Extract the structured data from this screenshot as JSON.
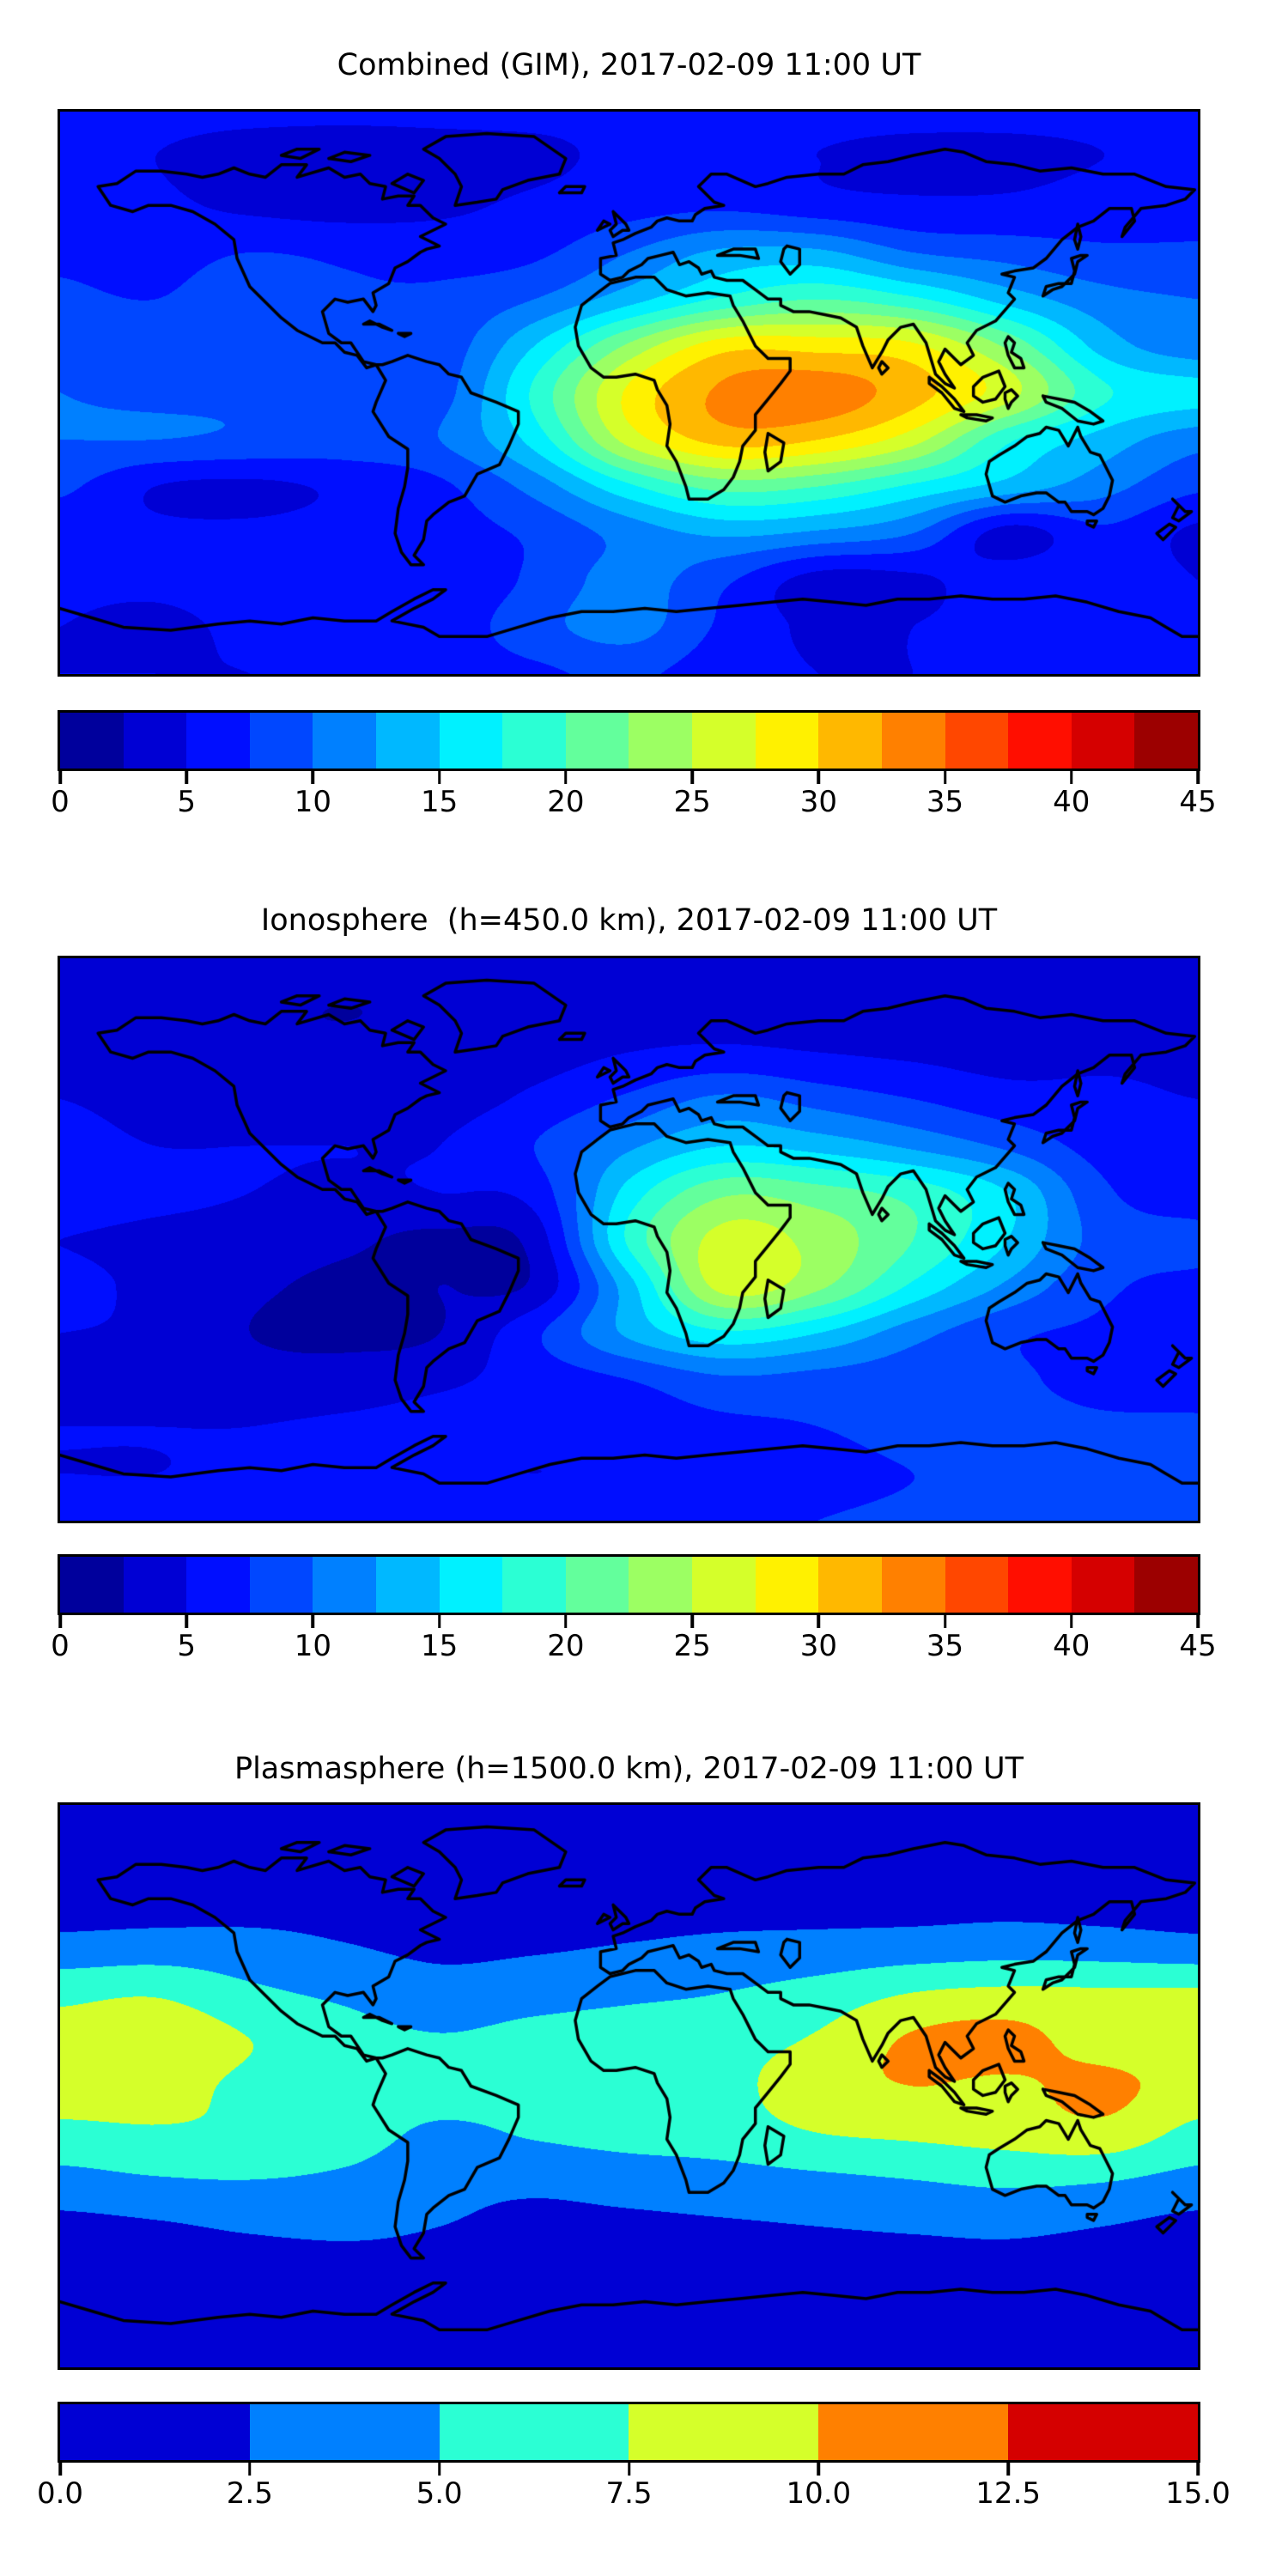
{
  "figure": {
    "background_color": "#ffffff",
    "map_border_color": "#000000",
    "coastline_color": "#000000"
  },
  "chart_data": [
    {
      "type": "heatmap",
      "title": "Combined (GIM), 2017-02-09 11:00 UT",
      "colormap": "jet",
      "projection": "equirectangular",
      "vmin": 0,
      "vmax": 45,
      "level_step": 2.5,
      "n_bands": 18,
      "colorbar_tick_labels": [
        "0",
        "5",
        "10",
        "15",
        "20",
        "25",
        "30",
        "35",
        "40",
        "45"
      ],
      "colorbar_tick_values": [
        0,
        5,
        10,
        15,
        20,
        25,
        30,
        35,
        40,
        45
      ],
      "lon_min": -180,
      "lon_max": 180,
      "lon_step": 30,
      "lat_max": 90,
      "lat_min": -90,
      "lat_step": 15,
      "grid_lats": [
        90,
        75,
        60,
        45,
        30,
        15,
        0,
        -15,
        -30,
        -45,
        -60,
        -75,
        -90
      ],
      "grid_lons": [
        -180,
        -150,
        -120,
        -90,
        -60,
        -30,
        0,
        30,
        60,
        90,
        120,
        150,
        180
      ],
      "values": [
        [
          5.5,
          5.5,
          5.5,
          5.5,
          5.5,
          5.5,
          5.5,
          5.5,
          5.5,
          5.5,
          5.5,
          5.5,
          5.5
        ],
        [
          5.5,
          5.0,
          4.0,
          3.5,
          4.0,
          4.5,
          5.5,
          5.5,
          5.0,
          4.5,
          4.5,
          5.0,
          5.5
        ],
        [
          6.0,
          5.5,
          4.5,
          4.0,
          4.5,
          5.5,
          6.5,
          7.0,
          6.0,
          5.5,
          5.5,
          6.0,
          6.0
        ],
        [
          7.0,
          6.5,
          7.5,
          7.0,
          6.5,
          7.0,
          10.0,
          13.0,
          13.0,
          10.0,
          9.0,
          8.0,
          8.0
        ],
        [
          8.0,
          7.5,
          9.0,
          8.0,
          8.0,
          10.0,
          14.0,
          18.0,
          20.0,
          18.0,
          14.0,
          11.0,
          10.0
        ],
        [
          9.5,
          9.0,
          9.5,
          9.0,
          8.5,
          15.0,
          23.0,
          29.0,
          29.0,
          28.0,
          22.0,
          14.0,
          11.0
        ],
        [
          10.0,
          9.5,
          9.5,
          9.0,
          9.0,
          18.0,
          28.0,
          33.0,
          34.0,
          31.0,
          26.0,
          18.0,
          16.0
        ],
        [
          10.0,
          10.0,
          9.5,
          9.0,
          10.0,
          16.0,
          26.0,
          31.0,
          30.0,
          26.0,
          18.0,
          14.0,
          11.0
        ],
        [
          8.0,
          5.0,
          4.5,
          5.5,
          7.0,
          11.0,
          17.0,
          21.0,
          20.0,
          17.0,
          14.0,
          11.0,
          8.0
        ],
        [
          6.0,
          5.5,
          5.5,
          6.0,
          6.5,
          8.0,
          11.0,
          13.0,
          12.0,
          10.0,
          4.0,
          7.0,
          4.5
        ],
        [
          5.5,
          5.5,
          6.0,
          6.0,
          5.5,
          8.0,
          11.0,
          8.0,
          4.0,
          4.5,
          6.5,
          7.0,
          5.0
        ],
        [
          5.0,
          4.5,
          5.5,
          6.0,
          6.0,
          9.0,
          11.0,
          7.0,
          4.5,
          5.0,
          6.0,
          6.5,
          5.5
        ],
        [
          5.0,
          5.0,
          5.0,
          5.5,
          6.0,
          7.0,
          8.0,
          6.0,
          5.0,
          5.0,
          5.5,
          6.0,
          5.5
        ]
      ]
    },
    {
      "type": "heatmap",
      "title": "Ionosphere  (h=450.0 km), 2017-02-09 11:00 UT",
      "colormap": "jet",
      "projection": "equirectangular",
      "vmin": 0,
      "vmax": 45,
      "level_step": 2.5,
      "n_bands": 18,
      "colorbar_tick_labels": [
        "0",
        "5",
        "10",
        "15",
        "20",
        "25",
        "30",
        "35",
        "40",
        "45"
      ],
      "colorbar_tick_values": [
        0,
        5,
        10,
        15,
        20,
        25,
        30,
        35,
        40,
        45
      ],
      "lon_min": -180,
      "lon_max": 180,
      "lon_step": 30,
      "lat_max": 90,
      "lat_min": -90,
      "lat_step": 15,
      "grid_lats": [
        90,
        75,
        60,
        45,
        30,
        15,
        0,
        -15,
        -30,
        -45,
        -60,
        -75,
        -90
      ],
      "grid_lons": [
        -180,
        -150,
        -120,
        -90,
        -60,
        -30,
        0,
        30,
        60,
        90,
        120,
        150,
        180
      ],
      "values": [
        [
          4.0,
          4.0,
          4.0,
          4.0,
          4.0,
          4.0,
          4.0,
          4.0,
          4.0,
          4.0,
          4.0,
          4.0,
          4.0
        ],
        [
          4.0,
          3.5,
          3.0,
          2.5,
          3.0,
          3.5,
          4.0,
          4.0,
          3.5,
          3.0,
          3.0,
          3.5,
          4.0
        ],
        [
          4.5,
          4.0,
          3.0,
          3.0,
          3.5,
          4.0,
          5.0,
          5.5,
          5.0,
          4.5,
          4.0,
          4.5,
          4.5
        ],
        [
          5.0,
          4.5,
          4.0,
          4.0,
          4.0,
          5.5,
          8.0,
          10.5,
          9.0,
          7.5,
          6.0,
          5.5,
          5.0
        ],
        [
          5.5,
          5.0,
          5.0,
          5.0,
          5.0,
          7.5,
          12.0,
          15.0,
          14.0,
          12.0,
          9.5,
          6.5,
          6.0
        ],
        [
          6.0,
          5.5,
          5.0,
          4.5,
          5.0,
          6.0,
          16.0,
          22.0,
          21.0,
          19.0,
          15.0,
          8.0,
          6.5
        ],
        [
          5.0,
          4.5,
          4.0,
          3.0,
          2.0,
          3.5,
          18.0,
          26.0,
          24.0,
          20.0,
          15.0,
          9.0,
          8.0
        ],
        [
          5.5,
          4.5,
          3.0,
          2.0,
          2.5,
          3.0,
          14.0,
          26.0,
          23.0,
          17.0,
          12.0,
          8.0,
          7.0
        ],
        [
          5.0,
          4.5,
          2.5,
          2.0,
          2.5,
          7.0,
          13.0,
          17.0,
          15.0,
          11.0,
          8.0,
          7.0,
          6.0
        ],
        [
          4.0,
          4.0,
          3.5,
          3.5,
          4.5,
          6.0,
          7.5,
          9.5,
          9.0,
          8.5,
          8.0,
          6.5,
          6.0
        ],
        [
          5.0,
          5.0,
          5.0,
          5.5,
          6.0,
          6.0,
          6.5,
          7.0,
          7.5,
          8.5,
          8.5,
          8.0,
          8.0
        ],
        [
          5.0,
          5.0,
          5.5,
          6.0,
          5.5,
          5.0,
          5.5,
          6.0,
          6.5,
          7.5,
          8.0,
          8.0,
          8.0
        ],
        [
          6.0,
          6.0,
          6.0,
          6.0,
          6.0,
          6.5,
          7.0,
          7.0,
          7.5,
          8.0,
          8.0,
          8.0,
          8.0
        ]
      ]
    },
    {
      "type": "heatmap",
      "title": "Plasmasphere (h=1500.0 km), 2017-02-09 11:00 UT",
      "colormap": "jet",
      "projection": "equirectangular",
      "vmin": 0,
      "vmax": 15,
      "level_step": 2.5,
      "n_bands": 6,
      "colorbar_tick_labels": [
        "0.0",
        "2.5",
        "5.0",
        "7.5",
        "10.0",
        "12.5",
        "15.0"
      ],
      "colorbar_tick_values": [
        0,
        2.5,
        5,
        7.5,
        10,
        12.5,
        15
      ],
      "lon_min": -180,
      "lon_max": 180,
      "lon_step": 30,
      "lat_max": 90,
      "lat_min": -90,
      "lat_step": 15,
      "grid_lats": [
        90,
        75,
        60,
        45,
        30,
        15,
        0,
        -15,
        -30,
        -45,
        -60,
        -75,
        -90
      ],
      "grid_lons": [
        -180,
        -150,
        -120,
        -90,
        -60,
        -30,
        0,
        30,
        60,
        90,
        120,
        150,
        180
      ],
      "values": [
        [
          1.2,
          1.2,
          1.2,
          1.2,
          1.2,
          1.2,
          1.2,
          1.2,
          1.2,
          1.2,
          1.2,
          1.2,
          1.2
        ],
        [
          1.2,
          1.2,
          1.2,
          1.2,
          1.2,
          1.2,
          1.2,
          1.2,
          1.2,
          1.2,
          1.2,
          1.2,
          1.2
        ],
        [
          1.4,
          1.4,
          1.5,
          1.6,
          1.6,
          1.5,
          1.4,
          1.5,
          1.6,
          1.6,
          1.7,
          1.5,
          1.4
        ],
        [
          3.2,
          3.5,
          3.3,
          2.6,
          2.0,
          2.2,
          2.6,
          3.0,
          3.2,
          3.5,
          3.8,
          3.6,
          3.2
        ],
        [
          6.8,
          7.2,
          5.5,
          4.5,
          3.5,
          4.0,
          4.5,
          5.0,
          6.0,
          7.5,
          8.0,
          7.8,
          7.8
        ],
        [
          8.5,
          9.2,
          7.5,
          6.0,
          5.2,
          5.8,
          6.2,
          6.5,
          7.8,
          10.3,
          10.8,
          8.8,
          8.5
        ],
        [
          8.8,
          8.5,
          7.0,
          6.5,
          6.2,
          6.3,
          6.5,
          6.8,
          9.0,
          10.0,
          9.6,
          10.6,
          8.8
        ],
        [
          6.8,
          7.2,
          7.0,
          6.3,
          4.5,
          5.3,
          6.0,
          6.3,
          7.5,
          8.0,
          8.5,
          9.2,
          6.8
        ],
        [
          4.2,
          4.8,
          5.0,
          4.5,
          3.2,
          3.0,
          3.5,
          4.0,
          4.5,
          5.0,
          5.5,
          5.2,
          4.2
        ],
        [
          1.8,
          2.2,
          2.8,
          3.0,
          2.5,
          2.0,
          2.0,
          2.2,
          2.5,
          2.8,
          3.0,
          2.5,
          1.8
        ],
        [
          1.0,
          1.0,
          1.2,
          1.5,
          1.5,
          1.2,
          1.0,
          1.0,
          1.2,
          1.3,
          1.5,
          1.2,
          1.0
        ],
        [
          1.0,
          1.0,
          1.0,
          1.0,
          1.0,
          1.0,
          1.0,
          1.0,
          1.0,
          1.0,
          1.0,
          1.0,
          1.0
        ],
        [
          1.0,
          1.0,
          1.0,
          1.0,
          1.0,
          1.0,
          1.0,
          1.0,
          1.0,
          1.0,
          1.0,
          1.0,
          1.0
        ]
      ]
    }
  ]
}
